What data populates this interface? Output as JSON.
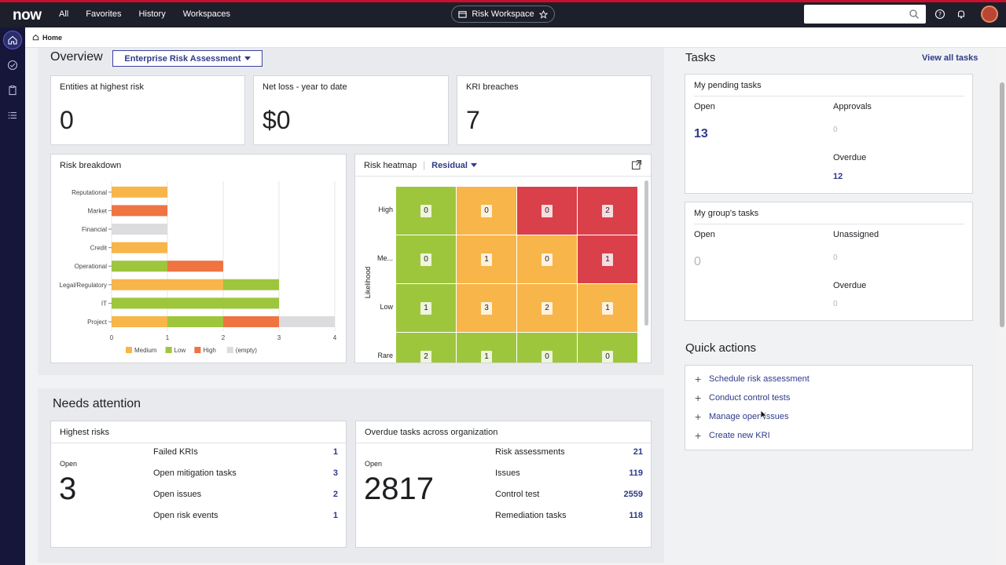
{
  "topbar": {
    "logo": "now",
    "nav": [
      "All",
      "Favorites",
      "History",
      "Workspaces"
    ],
    "workspace": "Risk Workspace"
  },
  "breadcrumb": {
    "home": "Home"
  },
  "overview": {
    "title": "Overview",
    "dropdown": "Enterprise Risk Assessment",
    "cards": [
      {
        "title": "Entities at highest risk",
        "value": "0"
      },
      {
        "title": "Net loss - year to date",
        "value": "$0"
      },
      {
        "title": "KRI breaches",
        "value": "7"
      }
    ]
  },
  "risk_breakdown": {
    "title": "Risk breakdown"
  },
  "chart_data": {
    "type": "bar",
    "stacked": true,
    "orientation": "horizontal",
    "title": "Risk breakdown",
    "categories": [
      "Reputational",
      "Market",
      "Financial",
      "Credit",
      "Operational",
      "Legal/Regulatory",
      "IT",
      "Project"
    ],
    "series": [
      {
        "name": "Medium",
        "color": "#f7b54a",
        "values": [
          1,
          0,
          0,
          1,
          0,
          2,
          0,
          1
        ]
      },
      {
        "name": "Low",
        "color": "#9ec63d",
        "values": [
          0,
          0,
          0,
          0,
          1,
          1,
          3,
          1
        ]
      },
      {
        "name": "High",
        "color": "#ee7442",
        "values": [
          0,
          1,
          0,
          0,
          1,
          0,
          0,
          1
        ]
      },
      {
        "name": "(empty)",
        "color": "#dcdcdf",
        "values": [
          0,
          0,
          1,
          0,
          0,
          0,
          0,
          1
        ]
      }
    ],
    "xticks": [
      "0",
      "1",
      "2",
      "3",
      "4"
    ],
    "xlim": [
      0,
      4
    ],
    "legend": "bottom",
    "grid": true
  },
  "heatmap": {
    "title": "Risk heatmap",
    "mode": "Residual",
    "ylabel": "Likelihood",
    "rows": [
      {
        "label": "High",
        "cells": [
          {
            "v": "0",
            "c": "#9ec63d"
          },
          {
            "v": "0",
            "c": "#f7b54a"
          },
          {
            "v": "0",
            "c": "#d9404a"
          },
          {
            "v": "2",
            "c": "#d9404a"
          }
        ]
      },
      {
        "label": "Me...",
        "cells": [
          {
            "v": "0",
            "c": "#9ec63d"
          },
          {
            "v": "1",
            "c": "#f7b54a"
          },
          {
            "v": "0",
            "c": "#f7b54a"
          },
          {
            "v": "1",
            "c": "#d9404a"
          }
        ]
      },
      {
        "label": "Low",
        "cells": [
          {
            "v": "1",
            "c": "#9ec63d"
          },
          {
            "v": "3",
            "c": "#f7b54a"
          },
          {
            "v": "2",
            "c": "#f7b54a"
          },
          {
            "v": "1",
            "c": "#f7b54a"
          }
        ]
      },
      {
        "label": "Rare",
        "cells": [
          {
            "v": "2",
            "c": "#9ec63d"
          },
          {
            "v": "1",
            "c": "#9ec63d"
          },
          {
            "v": "0",
            "c": "#9ec63d"
          },
          {
            "v": "0",
            "c": "#9ec63d"
          }
        ]
      }
    ]
  },
  "needs_attention": {
    "title": "Needs attention",
    "highest_risks": {
      "title": "Highest risks",
      "open_label": "Open",
      "open_value": "3",
      "items": [
        {
          "label": "Failed KRIs",
          "value": "1"
        },
        {
          "label": "Open mitigation tasks",
          "value": "3"
        },
        {
          "label": "Open issues",
          "value": "2"
        },
        {
          "label": "Open risk events",
          "value": "1"
        }
      ]
    },
    "overdue": {
      "title": "Overdue tasks across organization",
      "open_label": "Open",
      "open_value": "2817",
      "items": [
        {
          "label": "Risk assessments",
          "value": "21"
        },
        {
          "label": "Issues",
          "value": "119"
        },
        {
          "label": "Control test",
          "value": "2559"
        },
        {
          "label": "Remediation tasks",
          "value": "118"
        }
      ]
    }
  },
  "tasks": {
    "title": "Tasks",
    "view_all": "View all tasks",
    "pending": {
      "title": "My pending tasks",
      "open_label": "Open",
      "open_value": "13",
      "approvals_label": "Approvals",
      "approvals_value": "0",
      "overdue_label": "Overdue",
      "overdue_value": "12"
    },
    "group": {
      "title": "My group's tasks",
      "open_label": "Open",
      "open_value": "0",
      "unassigned_label": "Unassigned",
      "unassigned_value": "0",
      "overdue_label": "Overdue",
      "overdue_value": "0"
    }
  },
  "quick_actions": {
    "title": "Quick actions",
    "items": [
      "Schedule risk assessment",
      "Conduct control tests",
      "Manage open issues",
      "Create new KRI"
    ]
  }
}
